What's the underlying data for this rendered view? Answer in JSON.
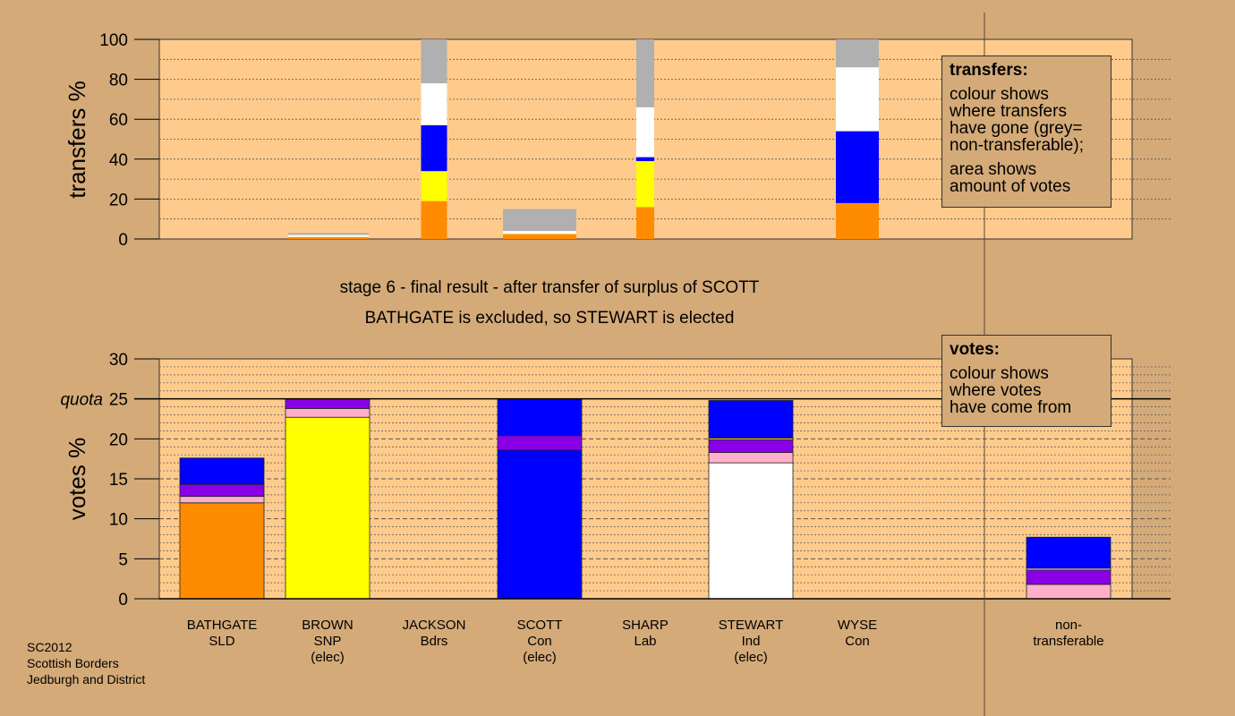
{
  "colors": {
    "orange": "#ff8c00",
    "yellow": "#ffff00",
    "blue": "#0000ff",
    "white": "#ffffff",
    "grey": "#b0b0b0",
    "pink": "#ffb0c8",
    "purple": "#8a00e6",
    "panel_bg": "#fecb8c",
    "page_bg": "#d4aa78"
  },
  "header": {
    "line1": "stage 6 - final result - after transfer of surplus of SCOTT",
    "line2": "BATHGATE is excluded, so STEWART is elected"
  },
  "legend_transfers": {
    "title": "transfers:",
    "lines1": [
      "colour shows",
      "where transfers",
      "have gone (grey=",
      "non-transferable);"
    ],
    "lines2": [
      "area shows",
      "amount of votes"
    ]
  },
  "legend_votes": {
    "title": "votes:",
    "lines1": [
      "colour shows",
      "where votes",
      "have come from"
    ]
  },
  "footer": [
    "SC2012",
    "Scottish Borders",
    "Jedburgh and District"
  ],
  "chart_data": [
    {
      "type": "bar",
      "ylabel": "transfers %",
      "ylim": [
        0,
        100
      ],
      "yticks": [
        0,
        20,
        40,
        60,
        80,
        100
      ],
      "bars": [
        {
          "segments": [
            {
              "color": "orange",
              "value": 1
            },
            {
              "color": "white",
              "value": 1
            },
            {
              "color": "grey",
              "value": 1
            }
          ]
        },
        {
          "segments": [
            {
              "color": "orange",
              "value": 19
            },
            {
              "color": "yellow",
              "value": 15
            },
            {
              "color": "blue",
              "value": 23
            },
            {
              "color": "white",
              "value": 21
            },
            {
              "color": "grey",
              "value": 22
            }
          ]
        },
        {
          "segments": [
            {
              "color": "orange",
              "value": 2.5
            },
            {
              "color": "white",
              "value": 1.5
            },
            {
              "color": "grey",
              "value": 11
            }
          ]
        },
        {
          "segments": [
            {
              "color": "orange",
              "value": 16
            },
            {
              "color": "yellow",
              "value": 23
            },
            {
              "color": "blue",
              "value": 2
            },
            {
              "color": "white",
              "value": 25
            },
            {
              "color": "grey",
              "value": 34
            }
          ]
        },
        {
          "segments": [
            {
              "color": "orange",
              "value": 18
            },
            {
              "color": "blue",
              "value": 36
            },
            {
              "color": "white",
              "value": 32
            },
            {
              "color": "grey",
              "value": 14
            }
          ]
        }
      ]
    },
    {
      "type": "bar",
      "ylabel": "votes %",
      "ylim": [
        0,
        30
      ],
      "yticks": [
        0,
        5,
        10,
        15,
        20,
        25,
        30
      ],
      "quota": 25,
      "quota_label": "quota",
      "categories": [
        {
          "name": "BATHGATE",
          "party": "SLD",
          "status": ""
        },
        {
          "name": "BROWN",
          "party": "SNP",
          "status": "(elec)"
        },
        {
          "name": "JACKSON",
          "party": "Bdrs",
          "status": ""
        },
        {
          "name": "SCOTT",
          "party": "Con",
          "status": "(elec)"
        },
        {
          "name": "SHARP",
          "party": "Lab",
          "status": ""
        },
        {
          "name": "STEWART",
          "party": "Ind",
          "status": "(elec)"
        },
        {
          "name": "WYSE",
          "party": "Con",
          "status": ""
        },
        {
          "name": "non-",
          "party": "transferable",
          "status": ""
        }
      ],
      "series": [
        {
          "segments": [
            {
              "color": "orange",
              "value": 12
            },
            {
              "color": "pink",
              "value": 0.8
            },
            {
              "color": "purple",
              "value": 1.5
            },
            {
              "color": "blue",
              "value": 3.3
            }
          ]
        },
        {
          "segments": [
            {
              "color": "yellow",
              "value": 22.7
            },
            {
              "color": "pink",
              "value": 1.1
            },
            {
              "color": "purple",
              "value": 1.2
            }
          ]
        },
        {
          "segments": []
        },
        {
          "segments": [
            {
              "color": "blue",
              "value": 18.6
            },
            {
              "color": "purple",
              "value": 1.8
            },
            {
              "color": "blue",
              "value": 4.6
            }
          ]
        },
        {
          "segments": []
        },
        {
          "segments": [
            {
              "color": "white",
              "value": 17
            },
            {
              "color": "pink",
              "value": 1.3
            },
            {
              "color": "purple",
              "value": 1.6
            },
            {
              "color": "yellow",
              "value": 0.2
            },
            {
              "color": "blue",
              "value": 4.7
            }
          ]
        },
        {
          "segments": []
        },
        {
          "segments": [
            {
              "color": "pink",
              "value": 1.8
            },
            {
              "color": "purple",
              "value": 1.8
            },
            {
              "color": "white",
              "value": 0.2
            },
            {
              "color": "blue",
              "value": 3.9
            }
          ]
        }
      ]
    }
  ]
}
